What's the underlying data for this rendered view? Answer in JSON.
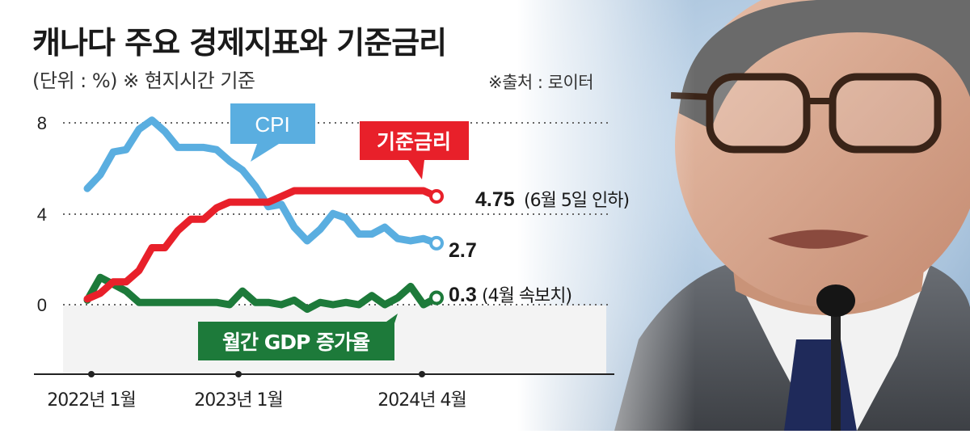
{
  "header": {
    "title": "캐나다 주요 경제지표와 기준금리",
    "subtitle": "(단위 : %) ※ 현지시간 기준",
    "source": "※출처 : 로이터"
  },
  "chart_data": {
    "type": "line",
    "title": "캐나다 주요 경제지표와 기준금리",
    "ylim": [
      0,
      9
    ],
    "y_ticks": [
      "8",
      "4",
      "0"
    ],
    "x_ticks": [
      "2022년 1월",
      "2023년 1월",
      "2024년 4월"
    ],
    "series": [
      {
        "name": "CPI",
        "color": "#5aaee0",
        "end_label": "2.7",
        "end_note": "",
        "values": [
          5.1,
          5.7,
          6.7,
          6.8,
          7.7,
          8.1,
          7.6,
          6.9,
          6.9,
          6.9,
          6.8,
          6.3,
          5.9,
          5.2,
          4.3,
          4.4,
          3.4,
          2.8,
          3.3,
          4.0,
          3.8,
          3.1,
          3.1,
          3.4,
          2.9,
          2.8,
          2.9,
          2.7
        ]
      },
      {
        "name": "기준금리",
        "color": "#e8202a",
        "end_label": "4.75",
        "end_note": "(6월 5일 인하)",
        "values": [
          0.25,
          0.5,
          1.0,
          1.0,
          1.5,
          2.5,
          2.5,
          3.25,
          3.75,
          3.75,
          4.25,
          4.5,
          4.5,
          4.5,
          4.5,
          4.75,
          5.0,
          5.0,
          5.0,
          5.0,
          5.0,
          5.0,
          5.0,
          5.0,
          5.0,
          5.0,
          5.0,
          4.75
        ]
      },
      {
        "name": "월간 GDP 증가율",
        "color": "#1d7a3a",
        "end_label": "0.3",
        "end_note": "(4월 속보치)",
        "values": [
          0.2,
          1.2,
          0.9,
          0.6,
          0.1,
          0.1,
          0.1,
          0.1,
          0.1,
          0.1,
          0.1,
          0.0,
          0.6,
          0.1,
          0.1,
          0.0,
          0.2,
          -0.2,
          0.1,
          0.0,
          0.1,
          0.0,
          0.4,
          0.0,
          0.3,
          0.8,
          0.0,
          0.3
        ]
      }
    ]
  },
  "labels": {
    "cpi": "CPI",
    "rate": "기준금리",
    "gdp": "월간 GDP 증가율"
  }
}
